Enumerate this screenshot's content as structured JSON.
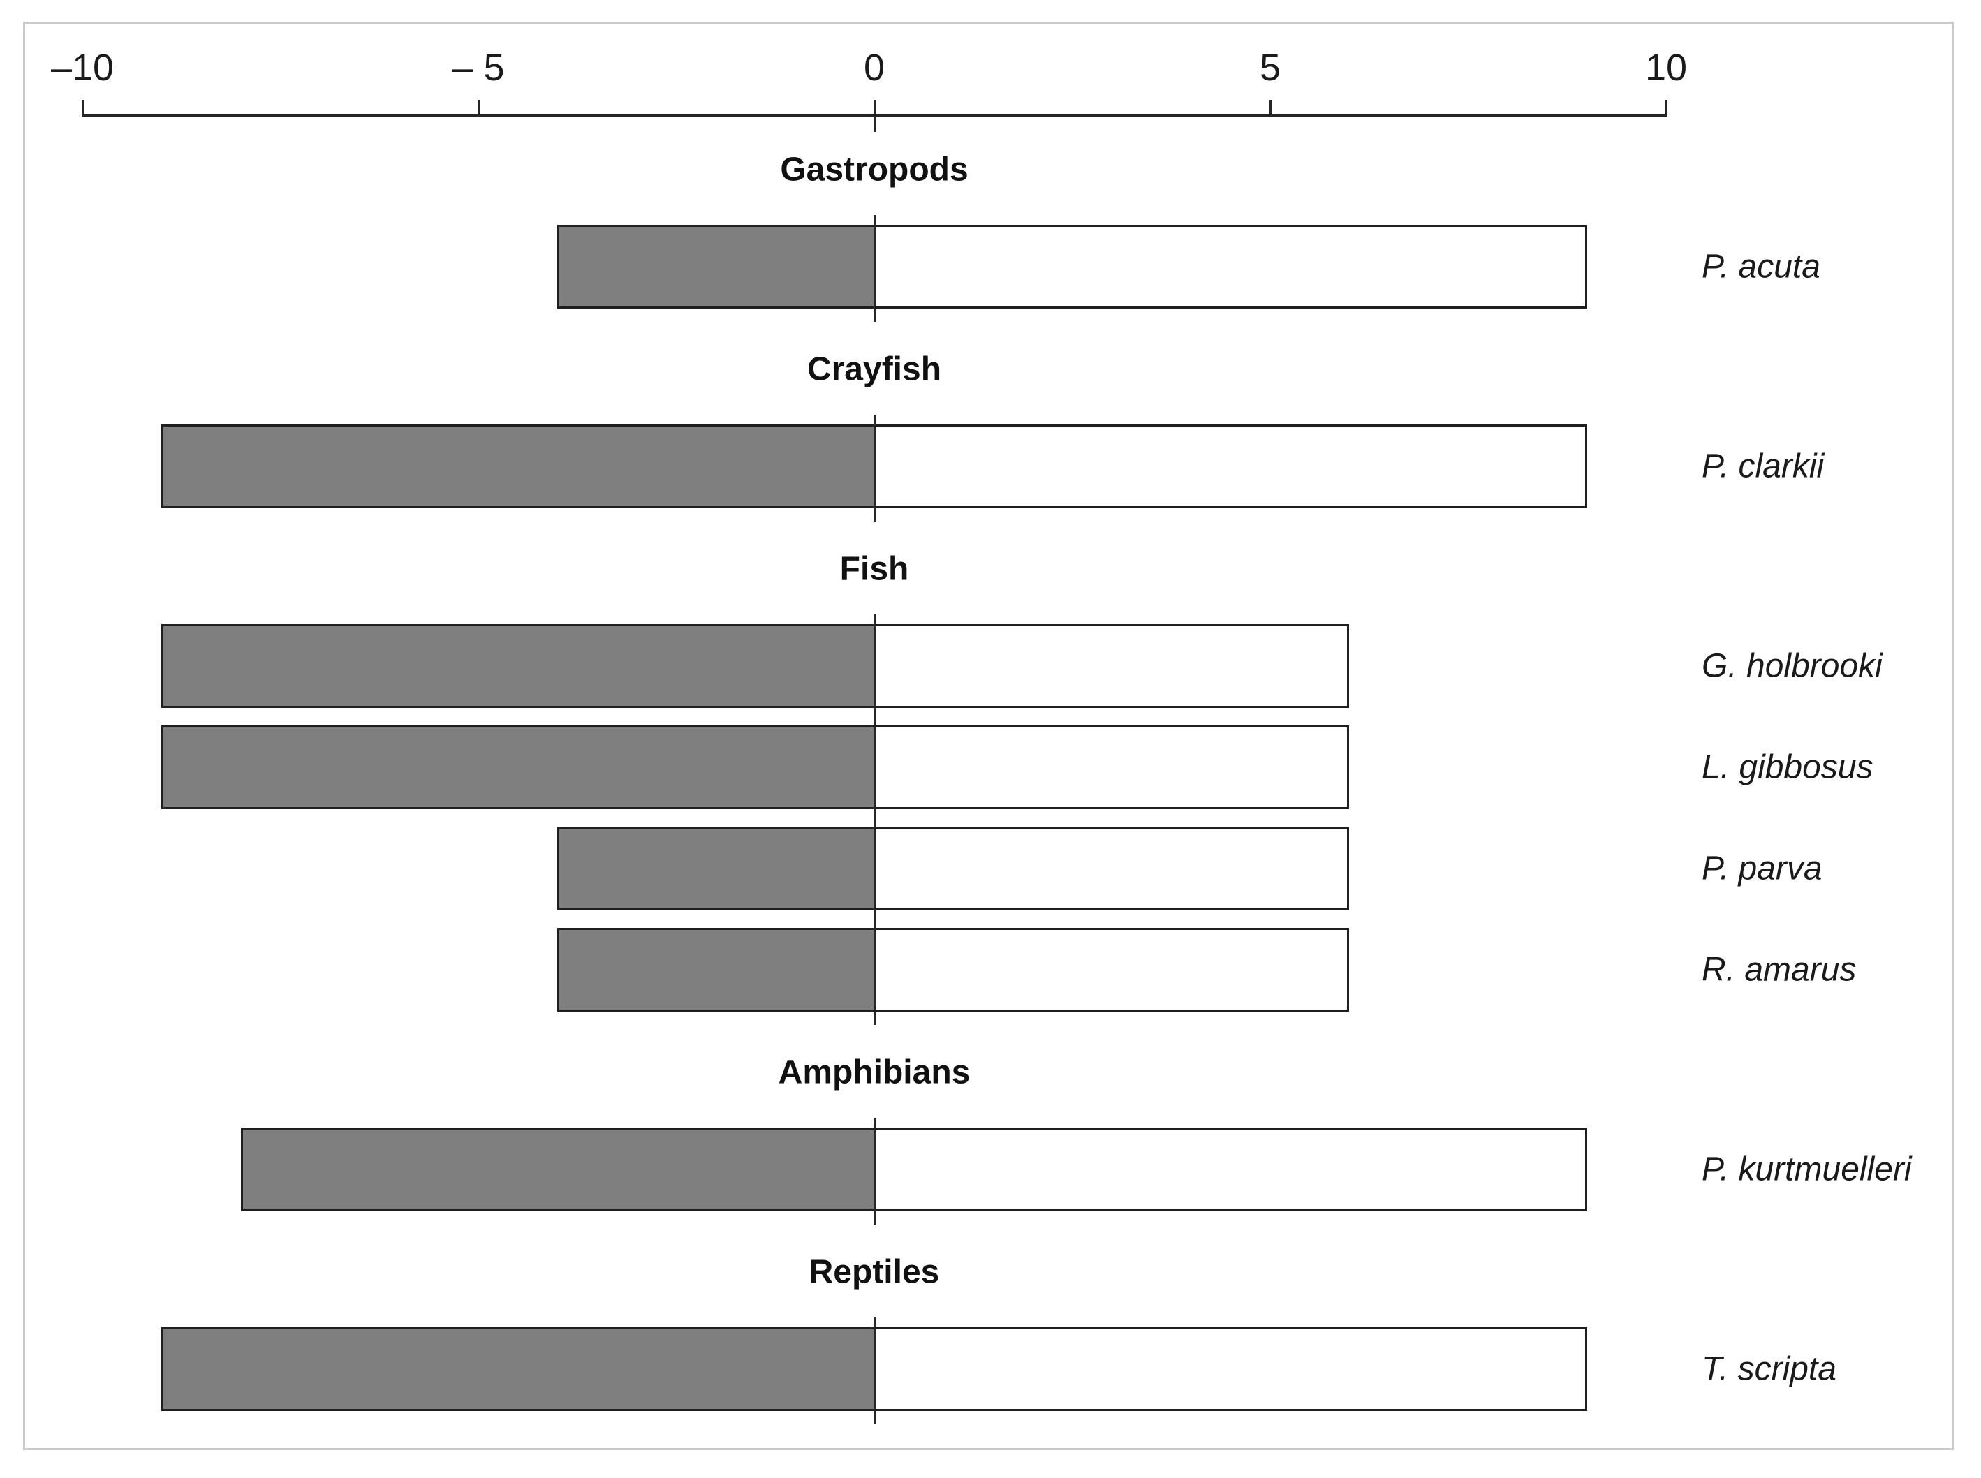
{
  "chart_data": {
    "type": "bar",
    "subtype": "horizontal-diverging",
    "title": "",
    "xlabel": "",
    "ylabel": "",
    "grid": false,
    "legend": "none",
    "axis": {
      "position": "top",
      "min": -10,
      "max": 10,
      "ticks": [
        -10,
        -5,
        0,
        5,
        10
      ],
      "tick_labels": [
        "–10",
        "– 5",
        "0",
        "5",
        "10"
      ]
    },
    "groups": [
      {
        "label": "Gastropods",
        "species": [
          {
            "name": "P. acuta",
            "neg": -4,
            "pos": 9
          }
        ]
      },
      {
        "label": "Crayfish",
        "species": [
          {
            "name": "P. clarkii",
            "neg": -9,
            "pos": 9
          }
        ]
      },
      {
        "label": "Fish",
        "species": [
          {
            "name": "G. holbrooki",
            "neg": -9,
            "pos": 6
          },
          {
            "name": "L. gibbosus",
            "neg": -9,
            "pos": 6
          },
          {
            "name": "P. parva",
            "neg": -4,
            "pos": 6
          },
          {
            "name": "R. amarus",
            "neg": -4,
            "pos": 6
          }
        ]
      },
      {
        "label": "Amphibians",
        "species": [
          {
            "name": "P. kurtmuelleri",
            "neg": -8,
            "pos": 9
          }
        ]
      },
      {
        "label": "Reptiles",
        "species": [
          {
            "name": "T. scripta",
            "neg": -9,
            "pos": 9
          }
        ]
      }
    ],
    "colors": {
      "negative_fill": "#7f7f7f",
      "positive_fill": "#ffffff",
      "bar_border": "#1f1f1f",
      "axis": "#262626",
      "text": "#1a1a1a",
      "frame_border": "#cbcbcb",
      "background": "#ffffff"
    }
  }
}
